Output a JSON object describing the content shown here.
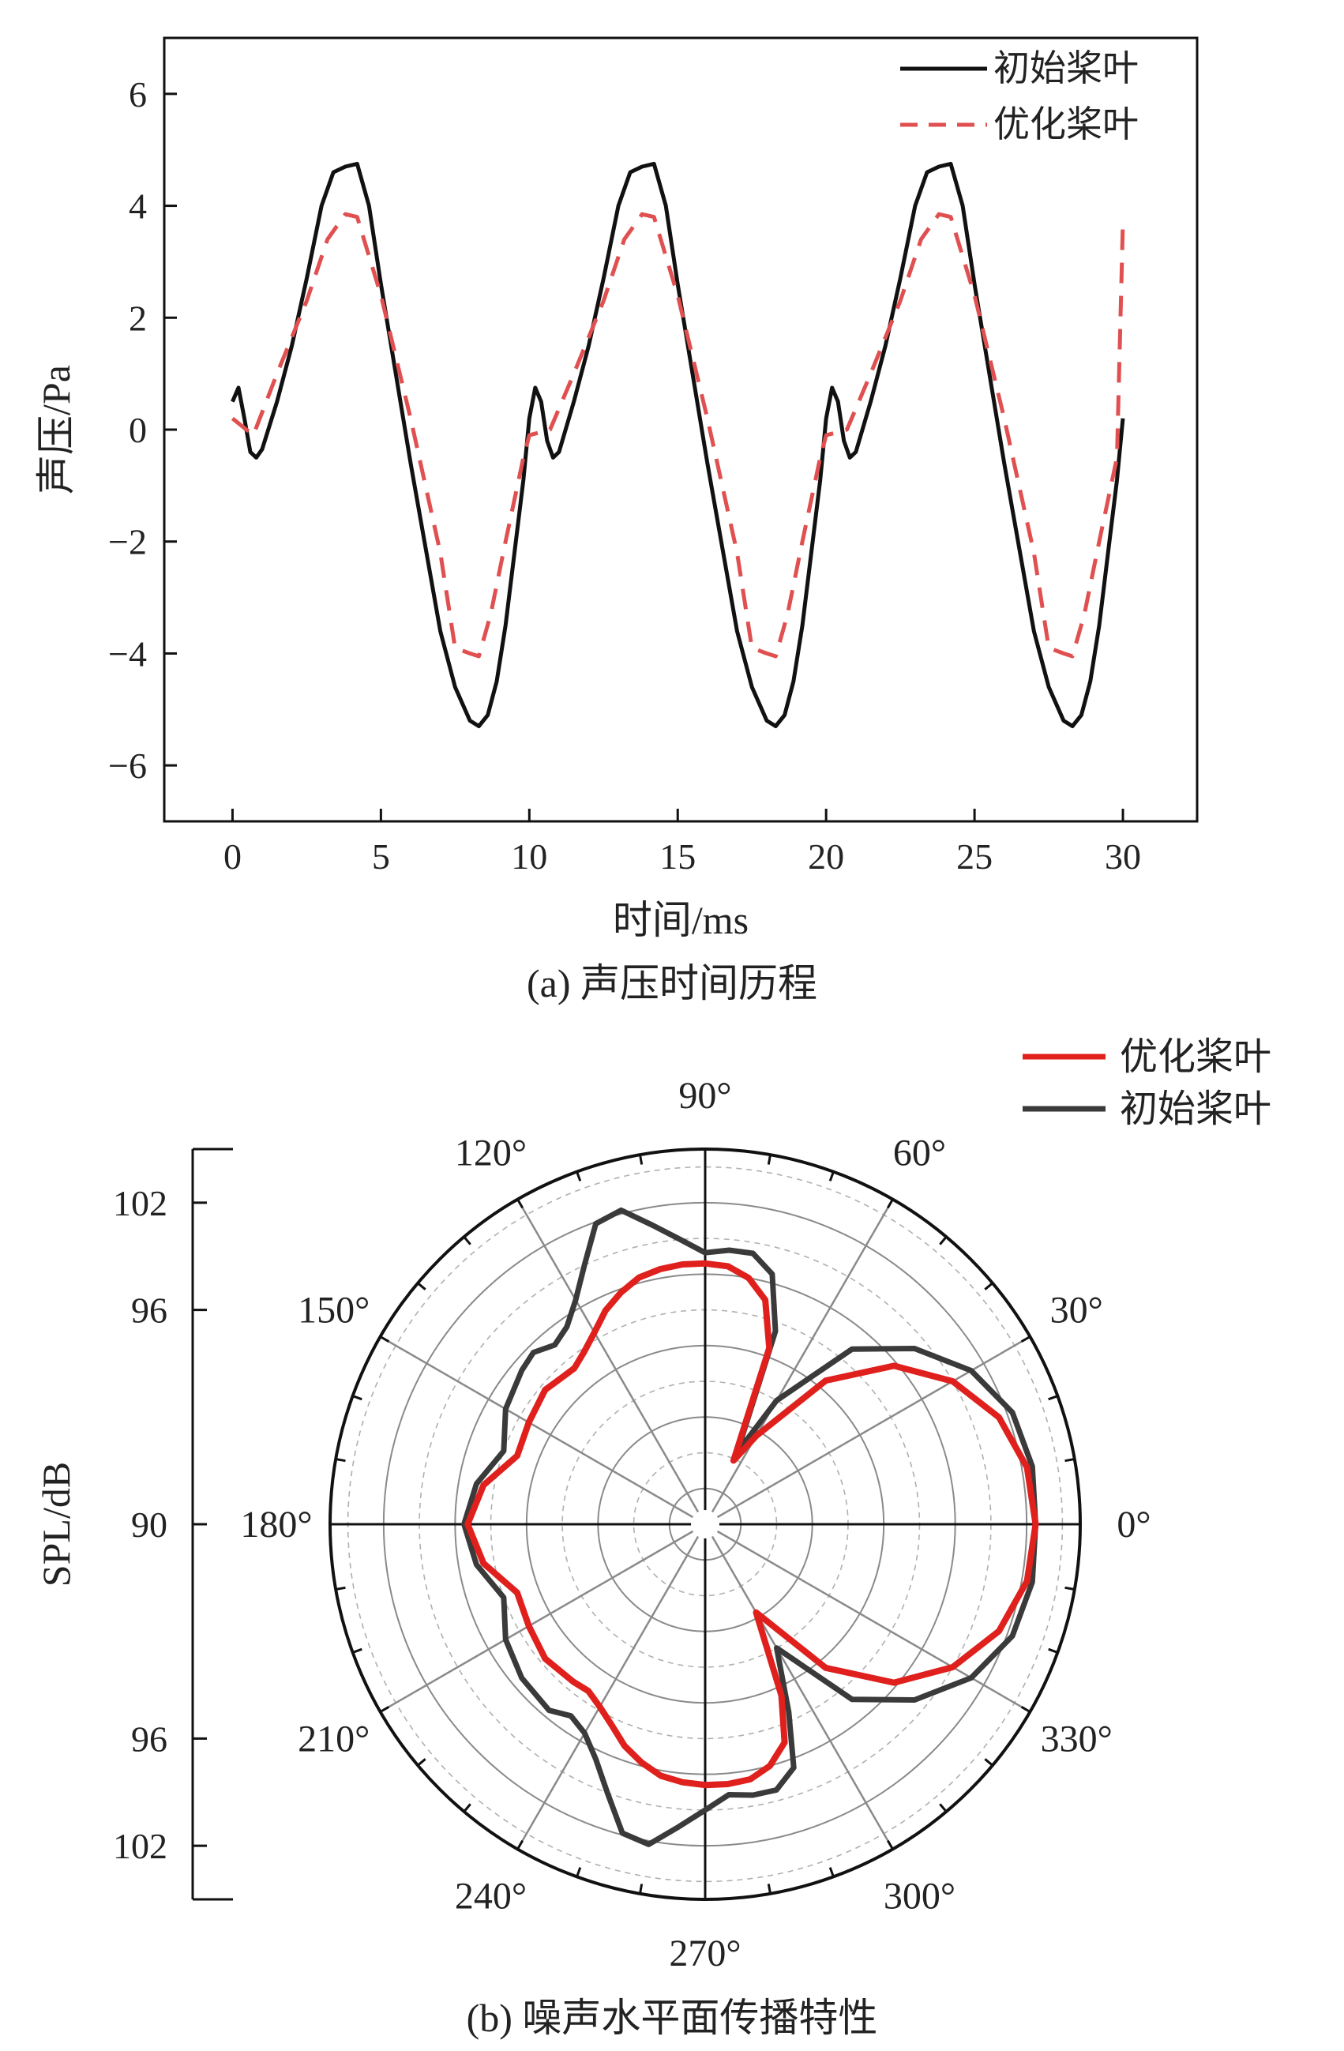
{
  "colors": {
    "initial": "#111111",
    "initial_polar": "#3a3a3a",
    "optimized_top": "#e05050",
    "optimized_polar": "#e0201c",
    "grid": "#8a8a8a",
    "grid_dashed": "#b0b0b0"
  },
  "chart_data": [
    {
      "id": "time-history",
      "type": "line",
      "caption": "(a) 声压时间历程",
      "xlabel": "时间/ms",
      "ylabel": "声压/Pa",
      "xlim": [
        -2.3,
        32.5
      ],
      "ylim": [
        -7,
        7
      ],
      "xticks": [
        0,
        5,
        10,
        15,
        20,
        25,
        30
      ],
      "yticks": [
        6,
        4,
        2,
        0,
        -2,
        -4,
        -6
      ],
      "legend_position": "top-right",
      "series": [
        {
          "name": "初始桨叶",
          "style": "solid",
          "x": [
            0,
            0.2,
            0.4,
            0.6,
            0.8,
            1.0,
            1.5,
            2.0,
            2.5,
            3.0,
            3.4,
            3.8,
            4.2,
            4.6,
            5.0,
            5.5,
            6.0,
            6.5,
            7.0,
            7.5,
            8.0,
            8.3,
            8.6,
            8.9,
            9.2,
            9.5,
            9.8,
            10.0,
            10.2,
            10.4,
            10.6,
            10.8,
            11.0,
            11.5,
            12.0,
            12.5,
            13.0,
            13.4,
            13.8,
            14.2,
            14.6,
            15.0,
            15.5,
            16.0,
            16.5,
            17.0,
            17.5,
            18.0,
            18.3,
            18.6,
            18.9,
            19.2,
            19.5,
            19.8,
            20.0,
            20.2,
            20.4,
            20.6,
            20.8,
            21.0,
            21.5,
            22.0,
            22.5,
            23.0,
            23.4,
            23.8,
            24.2,
            24.6,
            25.0,
            25.5,
            26.0,
            26.5,
            27.0,
            27.5,
            28.0,
            28.3,
            28.6,
            28.9,
            29.2,
            29.5,
            29.8,
            30.0
          ],
          "y": [
            0.5,
            0.75,
            0.2,
            -0.4,
            -0.5,
            -0.35,
            0.5,
            1.5,
            2.7,
            4.0,
            4.6,
            4.7,
            4.75,
            4.0,
            2.6,
            1.0,
            -0.6,
            -2.1,
            -3.6,
            -4.6,
            -5.2,
            -5.3,
            -5.1,
            -4.5,
            -3.5,
            -2.2,
            -0.9,
            0.2,
            0.75,
            0.5,
            -0.2,
            -0.5,
            -0.4,
            0.5,
            1.5,
            2.7,
            4.0,
            4.6,
            4.7,
            4.75,
            4.0,
            2.6,
            1.0,
            -0.6,
            -2.1,
            -3.6,
            -4.6,
            -5.2,
            -5.3,
            -5.1,
            -4.5,
            -3.5,
            -2.2,
            -0.9,
            0.2,
            0.75,
            0.5,
            -0.2,
            -0.5,
            -0.4,
            0.5,
            1.5,
            2.7,
            4.0,
            4.6,
            4.7,
            4.75,
            4.0,
            2.6,
            1.0,
            -0.6,
            -2.1,
            -3.6,
            -4.6,
            -5.2,
            -5.3,
            -5.1,
            -4.5,
            -3.5,
            -2.2,
            -0.9,
            0.2
          ]
        },
        {
          "name": "优化桨叶",
          "style": "dashed",
          "x": [
            0,
            0.7,
            1.5,
            2.5,
            3.2,
            3.8,
            4.2,
            5.0,
            6.0,
            7.0,
            7.5,
            8.0,
            8.3,
            8.7,
            9.2,
            9.8,
            10.0,
            10.7,
            11.5,
            12.5,
            13.2,
            13.8,
            14.2,
            15.0,
            16.0,
            17.0,
            17.5,
            18.0,
            18.3,
            18.7,
            19.2,
            19.8,
            20.0,
            20.7,
            21.5,
            22.5,
            23.2,
            23.8,
            24.2,
            25.0,
            26.0,
            27.0,
            27.5,
            28.0,
            28.3,
            28.7,
            29.2,
            29.8,
            30.0
          ],
          "y": [
            0.2,
            -0.1,
            1.0,
            2.3,
            3.4,
            3.85,
            3.8,
            2.4,
            0.2,
            -2.2,
            -3.9,
            -4.0,
            -4.05,
            -3.3,
            -2.0,
            -0.5,
            -0.1,
            0.0,
            1.0,
            2.3,
            3.4,
            3.85,
            3.8,
            2.4,
            0.2,
            -2.2,
            -3.9,
            -4.0,
            -4.05,
            -3.3,
            -2.0,
            -0.5,
            -0.1,
            0.0,
            1.0,
            2.3,
            3.4,
            3.85,
            3.8,
            2.4,
            0.2,
            -2.2,
            -3.9,
            -4.0,
            -4.05,
            -3.3,
            -2.0,
            -0.5,
            3.7
          ]
        }
      ]
    },
    {
      "id": "polar-directivity",
      "type": "polar",
      "caption": "(b) 噪声水平面传播特性",
      "ylabel": "SPL/dB",
      "radial_range": [
        84,
        105
      ],
      "r_axis_ticks": [
        "102",
        "96",
        "90",
        "96",
        "102"
      ],
      "angle_labels": [
        "0°",
        "30°",
        "60°",
        "90°",
        "120°",
        "150°",
        "180°",
        "210°",
        "240°",
        "270°",
        "300°",
        "330°"
      ],
      "legend_position": "top-right",
      "series": [
        {
          "name": "优化桨叶",
          "angles": [
            0,
            10,
            20,
            30,
            40,
            50,
            60,
            66,
            70,
            75,
            80,
            85,
            90,
            95,
            100,
            105,
            110,
            115,
            120,
            125,
            130,
            135,
            140,
            150,
            160,
            170,
            180,
            190,
            200,
            210,
            220,
            230,
            235,
            240,
            245,
            250,
            255,
            260,
            265,
            270,
            275,
            280,
            285,
            290,
            294,
            300,
            310,
            320,
            330,
            340,
            350
          ],
          "r": [
            102.5,
            102.3,
            101.5,
            100.0,
            97.8,
            94.5,
            89.7,
            87.9,
            94.5,
            97.0,
            98.0,
            98.5,
            98.6,
            98.6,
            98.5,
            98.3,
            97.8,
            97.2,
            96.4,
            95.8,
            95.4,
            95.5,
            95.7,
            95.4,
            95.2,
            96.6,
            97.3,
            96.6,
            95.2,
            95.4,
            95.7,
            95.5,
            95.4,
            95.8,
            96.4,
            97.2,
            97.8,
            98.3,
            98.5,
            98.6,
            98.6,
            98.5,
            98.0,
            97.0,
            94.5,
            89.7,
            94.5,
            97.8,
            100.0,
            101.5,
            102.3
          ]
        },
        {
          "name": "初始桨叶",
          "angles": [
            0,
            10,
            20,
            30,
            40,
            50,
            60,
            66,
            70,
            75,
            80,
            85,
            90,
            95,
            100,
            105,
            110,
            115,
            120,
            125,
            130,
            135,
            140,
            150,
            160,
            170,
            180,
            190,
            200,
            210,
            220,
            230,
            235,
            240,
            245,
            250,
            255,
            260,
            265,
            270,
            275,
            280,
            285,
            290,
            294,
            300,
            310,
            320,
            330,
            340,
            350
          ],
          "r": [
            102.5,
            102.6,
            102.3,
            101.2,
            99.3,
            96.8,
            92.0,
            88.4,
            95.5,
            98.5,
            99.4,
            99.4,
            99.2,
            100.0,
            101.0,
            102.2,
            101.9,
            100.0,
            98.5,
            97.5,
            97.1,
            97.6,
            97.4,
            96.9,
            96.0,
            97.0,
            97.5,
            97.0,
            96.0,
            96.9,
            97.4,
            97.6,
            97.1,
            97.5,
            98.5,
            100.0,
            101.9,
            102.2,
            101.0,
            100.0,
            99.2,
            99.4,
            99.4,
            98.5,
            95.5,
            92.0,
            96.8,
            99.3,
            101.2,
            102.3,
            102.6
          ]
        }
      ]
    }
  ]
}
